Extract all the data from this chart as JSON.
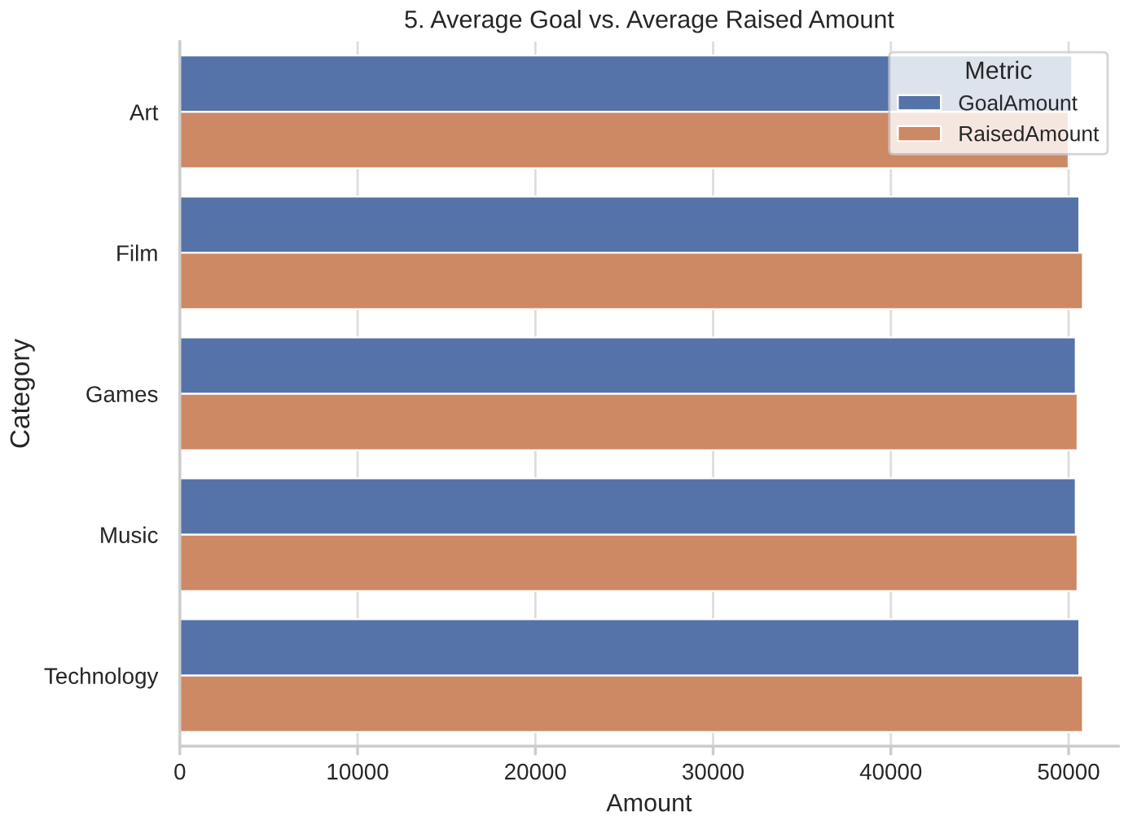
{
  "chart_data": {
    "type": "bar",
    "orientation": "horizontal",
    "title": "5. Average Goal vs. Average Raised Amount",
    "xlabel": "Amount",
    "ylabel": "Category",
    "legend_title": "Metric",
    "categories": [
      "Art",
      "Film",
      "Games",
      "Music",
      "Technology"
    ],
    "series": [
      {
        "name": "GoalAmount",
        "color": "#5573a8",
        "values": [
          50200,
          50600,
          50400,
          50400,
          50600
        ]
      },
      {
        "name": "RaisedAmount",
        "color": "#cd8864",
        "values": [
          50000,
          50800,
          50500,
          50500,
          50800
        ]
      }
    ],
    "xlim": [
      0,
      52800
    ],
    "xticks": [
      0,
      10000,
      20000,
      30000,
      40000,
      50000
    ],
    "grid": "x",
    "legend": "top right"
  }
}
